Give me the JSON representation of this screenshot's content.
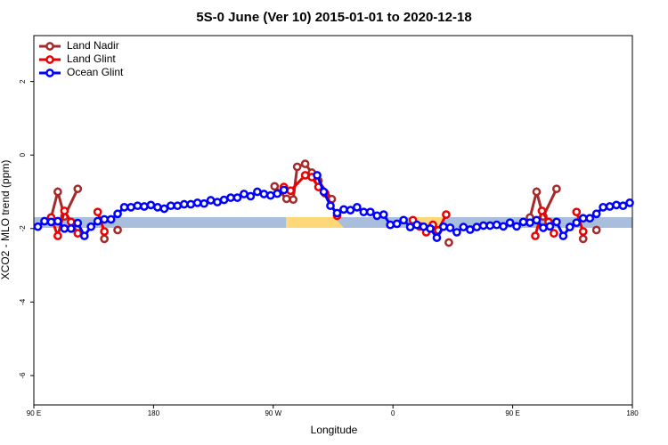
{
  "chart_data": {
    "type": "line",
    "title": "5S-0 June (Ver 10)   2015-01-01 to 2020-12-18",
    "x_label": "Longitude",
    "y_label": "XCO2 - MLO trend (ppm)",
    "xlim": [
      90,
      540
    ],
    "xticks": [
      {
        "value": 90,
        "label": "90 E"
      },
      180,
      {
        "value": 270,
        "label": "90 W"
      },
      {
        "value": 360,
        "label": "0"
      },
      {
        "value": 450,
        "label": "90 E"
      },
      {
        "value": 540,
        "label": "180"
      }
    ],
    "ylim": [
      -6.8,
      3.25
    ],
    "yticks": [
      -6,
      -4,
      -2,
      0,
      2
    ],
    "legend": "top-left",
    "series": [
      {
        "name": "Land Nadir",
        "color": "#a52a2a",
        "x": [
          103,
          108,
          113,
          123,
          133,
          143,
          148,
          153,
          200,
          271,
          280,
          285,
          288,
          294,
          299,
          304,
          314,
          350,
          402,
          430,
          463,
          468,
          473,
          483,
          493,
          503,
          508,
          513
        ],
        "values": [
          -1.7,
          -1.0,
          -1.67,
          -0.92,
          null,
          -2.28,
          null,
          -2.04,
          null,
          -0.85,
          -1.19,
          -1.21,
          -0.32,
          -0.24,
          -0.48,
          -0.7,
          -1.2,
          null,
          -2.38,
          null,
          -1.7,
          -1.0,
          -1.67,
          -0.92,
          null,
          -2.28,
          null,
          -2.04
        ]
      },
      {
        "name": "Land Glint",
        "color": "#ee0000",
        "x": [
          103,
          108,
          113,
          118,
          123,
          130,
          138,
          143,
          200,
          278,
          283,
          294,
          299,
          304,
          309,
          318,
          350,
          375,
          380,
          385,
          390,
          394,
          400,
          440,
          467,
          472,
          477,
          481,
          490,
          498,
          503
        ],
        "values": [
          -1.7,
          -2.2,
          -1.52,
          -1.82,
          -2.13,
          null,
          -1.55,
          -2.08,
          null,
          -0.87,
          -0.97,
          -0.55,
          -0.6,
          -0.87,
          -1.04,
          -1.65,
          null,
          -1.77,
          -1.94,
          -2.1,
          -1.9,
          -2.05,
          -1.62,
          null,
          -2.2,
          -1.52,
          -1.82,
          -2.13,
          null,
          -1.55,
          -2.08
        ]
      },
      {
        "name": "Ocean Glint",
        "color": "#0000ff",
        "x": [
          93,
          98,
          103,
          108,
          113,
          118,
          123,
          128,
          133,
          138,
          143,
          148,
          153,
          158,
          163,
          168,
          173,
          178,
          183,
          188,
          193,
          198,
          203,
          208,
          213,
          218,
          223,
          228,
          233,
          238,
          243,
          248,
          253,
          258,
          263,
          268,
          273,
          278,
          283,
          288,
          293,
          298,
          303,
          308,
          313,
          318,
          323,
          328,
          333,
          338,
          343,
          348,
          353,
          358,
          363,
          368,
          373,
          378,
          383,
          388,
          393,
          398,
          403,
          408,
          413,
          418,
          423,
          428,
          433,
          438,
          443,
          448,
          453,
          458,
          463,
          468,
          473,
          478,
          483,
          488,
          493,
          498,
          503,
          508,
          513,
          518,
          523,
          528,
          533,
          538
        ],
        "values": [
          -1.95,
          -1.8,
          -1.82,
          -1.8,
          -2.0,
          -2.0,
          -1.85,
          -2.2,
          -1.95,
          -1.8,
          -1.75,
          -1.75,
          -1.6,
          -1.42,
          -1.42,
          -1.38,
          -1.4,
          -1.36,
          -1.42,
          -1.46,
          -1.38,
          -1.38,
          -1.34,
          -1.34,
          -1.3,
          -1.32,
          -1.23,
          -1.28,
          -1.22,
          -1.16,
          -1.16,
          -1.06,
          -1.12,
          -1.0,
          -1.06,
          -1.1,
          -1.05,
          -0.95,
          null,
          null,
          null,
          null,
          -0.55,
          -1.0,
          -1.38,
          -1.58,
          -1.48,
          -1.5,
          -1.42,
          -1.55,
          -1.55,
          -1.65,
          -1.62,
          -1.9,
          -1.87,
          -1.77,
          -1.96,
          -1.9,
          -1.95,
          -2.0,
          -2.25,
          -1.95,
          -1.98,
          -2.1,
          -1.96,
          -2.03,
          -1.96,
          -1.92,
          -1.92,
          -1.9,
          -1.94,
          -1.84,
          -1.94,
          -1.82,
          -1.84,
          -1.77,
          -1.98,
          -1.94,
          -1.82,
          -2.2,
          -1.96,
          -1.84,
          -1.72,
          -1.72,
          -1.6,
          -1.42,
          -1.4,
          -1.36,
          -1.38,
          -1.3
        ]
      }
    ]
  }
}
